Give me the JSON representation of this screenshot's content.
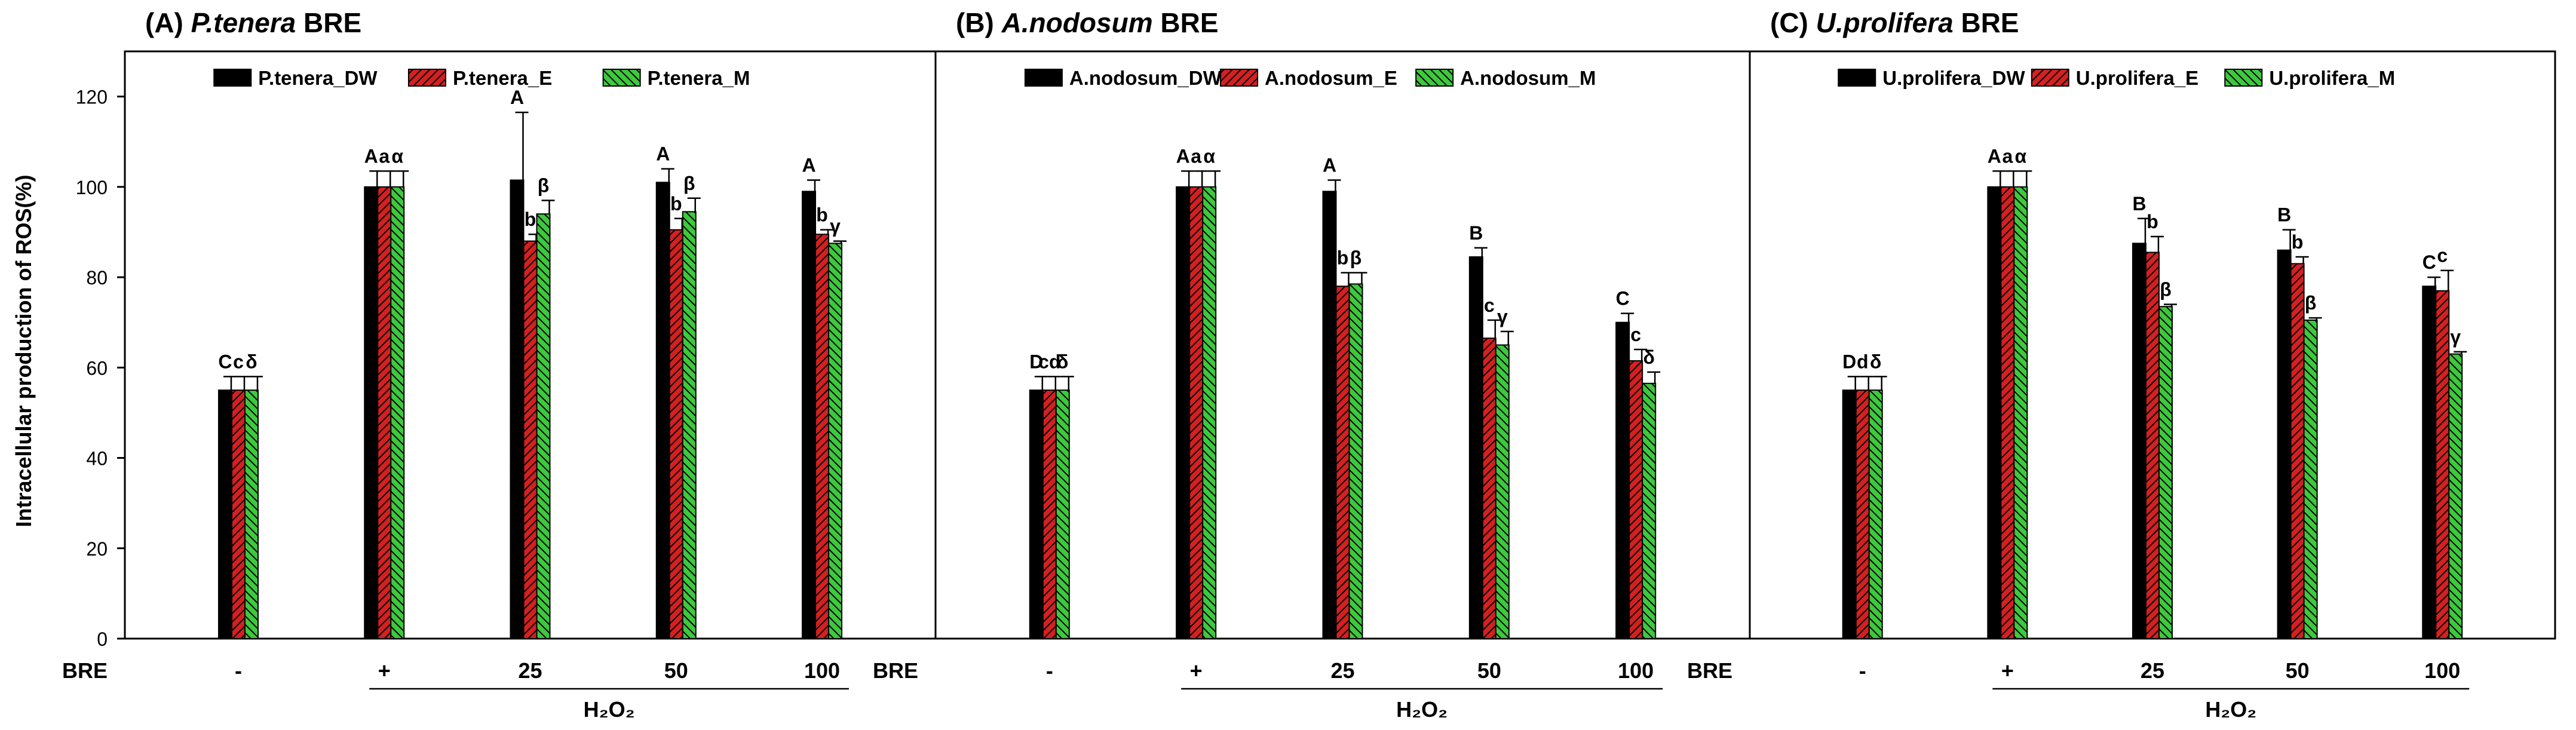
{
  "y_axis_label": "Intracellular production of ROS(%)",
  "y_ticks": [
    0,
    20,
    40,
    60,
    80,
    100,
    120
  ],
  "ylim": [
    0,
    130
  ],
  "x_row_label": "BRE",
  "x_categories": [
    "-",
    "+",
    "25",
    "50",
    "100"
  ],
  "treatment_label": "H₂O₂",
  "colors": {
    "DW": "#000000",
    "E": "#d42020",
    "M": "#3dc93d"
  },
  "panels": [
    {
      "prefix": "(A) ",
      "species": "P.tenera",
      "suffix": " BRE",
      "legend": [
        "P.tenera_DW",
        "P.tenera_E",
        "P.tenera_M"
      ],
      "series": [
        {
          "key": "DW",
          "values": [
            55,
            100,
            101.5,
            101,
            99
          ],
          "errors": [
            3,
            3.5,
            15,
            3,
            2.5
          ],
          "letters": [
            "C",
            "A",
            "A",
            "A",
            "A"
          ]
        },
        {
          "key": "E",
          "values": [
            55,
            100,
            88,
            90.5,
            89.5
          ],
          "errors": [
            3,
            3.5,
            1.5,
            2.5,
            1
          ],
          "letters": [
            "c",
            "a",
            "b",
            "b",
            "b"
          ]
        },
        {
          "key": "M",
          "values": [
            55,
            100,
            94,
            94.5,
            87.5
          ],
          "errors": [
            3,
            3.5,
            3,
            3,
            0.5
          ],
          "letters": [
            "δ",
            "α",
            "β",
            "β",
            "γ"
          ]
        }
      ]
    },
    {
      "prefix": "(B) ",
      "species": "A.nodosum",
      "suffix": " BRE",
      "legend": [
        "A.nodosum_DW",
        "A.nodosum_E",
        "A.nodosum_M"
      ],
      "series": [
        {
          "key": "DW",
          "values": [
            55,
            100,
            99,
            84.5,
            70
          ],
          "errors": [
            3,
            3.5,
            2.5,
            2,
            2
          ],
          "letters": [
            "D",
            "A",
            "A",
            "B",
            "C"
          ]
        },
        {
          "key": "E",
          "values": [
            55,
            100,
            78,
            66.5,
            61.5
          ],
          "errors": [
            3,
            3.5,
            3,
            4,
            2.5
          ],
          "letters": [
            "cd",
            "a",
            "b",
            "c",
            "c"
          ]
        },
        {
          "key": "M",
          "values": [
            55,
            100,
            78.5,
            65,
            56.5
          ],
          "errors": [
            3,
            3.5,
            2.5,
            3,
            2.5
          ],
          "letters": [
            "δ",
            "α",
            "β",
            "γ",
            "δ"
          ]
        }
      ]
    },
    {
      "prefix": "(C) ",
      "species": "U.prolifera",
      "suffix": " BRE",
      "legend": [
        "U.prolifera_DW",
        "U.prolifera_E",
        "U.prolifera_M"
      ],
      "series": [
        {
          "key": "DW",
          "values": [
            55,
            100,
            87.5,
            86,
            78
          ],
          "errors": [
            3,
            3.5,
            5.5,
            4.5,
            2
          ],
          "letters": [
            "D",
            "A",
            "B",
            "B",
            "C"
          ]
        },
        {
          "key": "E",
          "values": [
            55,
            100,
            85.5,
            83,
            77
          ],
          "errors": [
            3,
            3.5,
            3.5,
            1.5,
            4.5
          ],
          "letters": [
            "d",
            "a",
            "b",
            "b",
            "c"
          ]
        },
        {
          "key": "M",
          "values": [
            55,
            100,
            73.5,
            70.5,
            63
          ],
          "errors": [
            3,
            3.5,
            0.5,
            0.5,
            0.5
          ],
          "letters": [
            "δ",
            "α",
            "β",
            "β",
            "γ"
          ]
        }
      ]
    }
  ],
  "chart_data": [
    {
      "type": "bar",
      "title": "(A) P.tenera BRE",
      "ylabel": "Intracellular production of ROS(%)",
      "xlabel": "H₂O₂",
      "ylim": [
        0,
        130
      ],
      "categories": [
        "-",
        "+",
        "25",
        "50",
        "100"
      ],
      "series": [
        {
          "name": "P.tenera_DW",
          "values": [
            55,
            100,
            101.5,
            101,
            99
          ]
        },
        {
          "name": "P.tenera_E",
          "values": [
            55,
            100,
            88,
            90.5,
            89.5
          ]
        },
        {
          "name": "P.tenera_M",
          "values": [
            55,
            100,
            94,
            94.5,
            87.5
          ]
        }
      ]
    },
    {
      "type": "bar",
      "title": "(B) A.nodosum BRE",
      "ylabel": "Intracellular production of ROS(%)",
      "xlabel": "H₂O₂",
      "ylim": [
        0,
        130
      ],
      "categories": [
        "-",
        "+",
        "25",
        "50",
        "100"
      ],
      "series": [
        {
          "name": "A.nodosum_DW",
          "values": [
            55,
            100,
            99,
            84.5,
            70
          ]
        },
        {
          "name": "A.nodosum_E",
          "values": [
            55,
            100,
            78,
            66.5,
            61.5
          ]
        },
        {
          "name": "A.nodosum_M",
          "values": [
            55,
            100,
            78.5,
            65,
            56.5
          ]
        }
      ]
    },
    {
      "type": "bar",
      "title": "(C) U.prolifera BRE",
      "ylabel": "Intracellular production of ROS(%)",
      "xlabel": "H₂O₂",
      "ylim": [
        0,
        130
      ],
      "categories": [
        "-",
        "+",
        "25",
        "50",
        "100"
      ],
      "series": [
        {
          "name": "U.prolifera_DW",
          "values": [
            55,
            100,
            87.5,
            86,
            78
          ]
        },
        {
          "name": "U.prolifera_E",
          "values": [
            55,
            100,
            85.5,
            83,
            77
          ]
        },
        {
          "name": "U.prolifera_M",
          "values": [
            55,
            100,
            73.5,
            70.5,
            63
          ]
        }
      ]
    }
  ]
}
